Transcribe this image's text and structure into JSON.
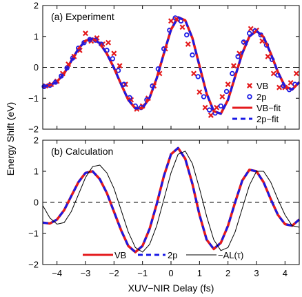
{
  "chart_data": {
    "xlabel": "XUV−NIR Delay (fs)",
    "ylabel": "Energy Shift (eV)",
    "xlim": [
      -4.5,
      4.5
    ],
    "xticks": [
      -4,
      -3,
      -2,
      -1,
      0,
      1,
      2,
      3,
      4
    ],
    "xtick_labels": [
      "−4",
      "−3",
      "−2",
      "−1",
      "0",
      "1",
      "2",
      "3",
      "4"
    ],
    "yticks": [
      -2,
      -1,
      0,
      1,
      2
    ],
    "ytick_labels": [
      "−2",
      "−1",
      "0",
      "1",
      "2"
    ],
    "panels": [
      {
        "title": "(a) Experiment",
        "type": "scatter",
        "ylim": [
          -2,
          2
        ],
        "zero_line": "dashed",
        "legend_position": "lower-right",
        "series": [
          {
            "name": "VB",
            "kind": "markers",
            "marker": "x",
            "color": "#e41a1c",
            "points": [
              [
                -4.4,
                -0.6
              ],
              [
                -4.2,
                -0.55
              ],
              [
                -4.0,
                -0.45
              ],
              [
                -3.8,
                -0.2
              ],
              [
                -3.6,
                0.1
              ],
              [
                -3.4,
                0.35
              ],
              [
                -3.2,
                0.55
              ],
              [
                -3.0,
                1.1
              ],
              [
                -2.8,
                0.85
              ],
              [
                -2.6,
                0.95
              ],
              [
                -2.4,
                0.75
              ],
              [
                -2.2,
                0.8
              ],
              [
                -2.0,
                0.45
              ],
              [
                -1.8,
                0.05
              ],
              [
                -1.6,
                -0.55
              ],
              [
                -1.4,
                -1.05
              ],
              [
                -1.2,
                -1.35
              ],
              [
                -1.0,
                -1.25
              ],
              [
                -0.8,
                -1.0
              ],
              [
                -0.6,
                -0.6
              ],
              [
                -0.4,
                -0.2
              ],
              [
                -0.2,
                0.6
              ],
              [
                0.0,
                1.5
              ],
              [
                0.2,
                1.55
              ],
              [
                0.4,
                1.3
              ],
              [
                0.6,
                0.75
              ],
              [
                0.8,
                -0.2
              ],
              [
                1.0,
                -0.8
              ],
              [
                1.2,
                -1.3
              ],
              [
                1.4,
                -1.55
              ],
              [
                1.6,
                -1.3
              ],
              [
                1.8,
                -0.95
              ],
              [
                2.0,
                -0.55
              ],
              [
                2.2,
                0.05
              ],
              [
                2.4,
                0.45
              ],
              [
                2.6,
                0.8
              ],
              [
                2.8,
                1.25
              ],
              [
                3.0,
                1.2
              ],
              [
                3.2,
                0.85
              ],
              [
                3.4,
                0.35
              ],
              [
                3.6,
                -0.2
              ],
              [
                3.8,
                -0.65
              ],
              [
                4.0,
                -0.65
              ],
              [
                4.2,
                -0.5
              ],
              [
                4.4,
                -0.2
              ]
            ]
          },
          {
            "name": "2p",
            "kind": "markers",
            "marker": "o",
            "color": "#1a1ae6",
            "points": [
              [
                -4.45,
                -0.62
              ],
              [
                -4.25,
                -0.58
              ],
              [
                -4.05,
                -0.48
              ],
              [
                -3.85,
                -0.28
              ],
              [
                -3.65,
                -0.02
              ],
              [
                -3.45,
                0.3
              ],
              [
                -3.25,
                0.62
              ],
              [
                -3.05,
                0.8
              ],
              [
                -2.85,
                0.9
              ],
              [
                -2.65,
                0.88
              ],
              [
                -2.45,
                0.75
              ],
              [
                -2.25,
                0.55
              ],
              [
                -2.05,
                0.28
              ],
              [
                -1.85,
                -0.1
              ],
              [
                -1.65,
                -0.55
              ],
              [
                -1.45,
                -0.98
              ],
              [
                -1.25,
                -1.25
              ],
              [
                -1.05,
                -1.3
              ],
              [
                -0.85,
                -1.05
              ],
              [
                -0.65,
                -0.6
              ],
              [
                -0.45,
                -0.05
              ],
              [
                -0.25,
                0.6
              ],
              [
                -0.05,
                1.2
              ],
              [
                0.15,
                1.6
              ],
              [
                0.35,
                1.5
              ],
              [
                0.55,
                1.05
              ],
              [
                0.75,
                0.4
              ],
              [
                0.95,
                -0.3
              ],
              [
                1.15,
                -0.95
              ],
              [
                1.35,
                -1.38
              ],
              [
                1.55,
                -1.48
              ],
              [
                1.75,
                -1.25
              ],
              [
                1.95,
                -0.78
              ],
              [
                2.15,
                -0.2
              ],
              [
                2.35,
                0.35
              ],
              [
                2.55,
                0.82
              ],
              [
                2.75,
                1.1
              ],
              [
                2.95,
                1.18
              ],
              [
                3.15,
                1.05
              ],
              [
                3.35,
                0.72
              ],
              [
                3.55,
                0.25
              ],
              [
                3.75,
                -0.25
              ],
              [
                3.95,
                -0.6
              ],
              [
                4.15,
                -0.72
              ],
              [
                4.35,
                -0.55
              ]
            ]
          },
          {
            "name": "VB−fit",
            "kind": "curve",
            "color": "#e41a1c",
            "dash": "solid",
            "x": [
              -4.5,
              -4.25,
              -4.0,
              -3.75,
              -3.5,
              -3.25,
              -3.0,
              -2.75,
              -2.5,
              -2.25,
              -2.0,
              -1.75,
              -1.5,
              -1.25,
              -1.0,
              -0.75,
              -0.5,
              -0.25,
              0.0,
              0.25,
              0.5,
              0.75,
              1.0,
              1.25,
              1.5,
              1.75,
              2.0,
              2.25,
              2.5,
              2.75,
              3.0,
              3.25,
              3.5,
              3.75,
              4.0,
              4.25,
              4.5
            ],
            "y": [
              -0.62,
              -0.58,
              -0.46,
              -0.2,
              0.2,
              0.6,
              0.86,
              0.93,
              0.78,
              0.44,
              -0.02,
              -0.55,
              -1.05,
              -1.33,
              -1.32,
              -0.98,
              -0.35,
              0.45,
              1.22,
              1.62,
              1.52,
              0.95,
              0.05,
              -0.85,
              -1.42,
              -1.5,
              -1.05,
              -0.3,
              0.45,
              1.0,
              1.18,
              0.98,
              0.45,
              -0.15,
              -0.62,
              -0.72,
              -0.48
            ]
          },
          {
            "name": "2p−fit",
            "kind": "curve",
            "color": "#1a1ae6",
            "dash": "dashed",
            "x": [
              -4.5,
              -4.25,
              -4.0,
              -3.75,
              -3.5,
              -3.25,
              -3.0,
              -2.75,
              -2.5,
              -2.25,
              -2.0,
              -1.75,
              -1.5,
              -1.25,
              -1.0,
              -0.75,
              -0.5,
              -0.25,
              0.0,
              0.25,
              0.5,
              0.75,
              1.0,
              1.25,
              1.5,
              1.75,
              2.0,
              2.25,
              2.5,
              2.75,
              3.0,
              3.25,
              3.5,
              3.75,
              4.0,
              4.25,
              4.5
            ],
            "y": [
              -0.62,
              -0.58,
              -0.46,
              -0.2,
              0.2,
              0.6,
              0.86,
              0.93,
              0.78,
              0.44,
              -0.02,
              -0.55,
              -1.05,
              -1.33,
              -1.32,
              -0.98,
              -0.35,
              0.45,
              1.22,
              1.62,
              1.52,
              0.95,
              0.05,
              -0.85,
              -1.42,
              -1.5,
              -1.05,
              -0.3,
              0.45,
              1.0,
              1.18,
              0.98,
              0.45,
              -0.15,
              -0.62,
              -0.72,
              -0.48
            ]
          }
        ]
      },
      {
        "title": "(b) Calculation",
        "type": "line",
        "ylim": [
          -2,
          2
        ],
        "zero_line": "dashed",
        "legend_position": "bottom",
        "series": [
          {
            "name": "VB",
            "kind": "curve",
            "color": "#e41a1c",
            "dash": "solid",
            "x": [
              -4.5,
              -4.25,
              -4.0,
              -3.75,
              -3.5,
              -3.25,
              -3.0,
              -2.75,
              -2.5,
              -2.25,
              -2.0,
              -1.75,
              -1.5,
              -1.25,
              -1.0,
              -0.75,
              -0.5,
              -0.25,
              0.0,
              0.25,
              0.5,
              0.75,
              1.0,
              1.25,
              1.5,
              1.75,
              2.0,
              2.25,
              2.5,
              2.75,
              3.0,
              3.25,
              3.5,
              3.75,
              4.0,
              4.25,
              4.5
            ],
            "y": [
              -0.65,
              -0.68,
              -0.55,
              -0.25,
              0.2,
              0.65,
              0.95,
              1.0,
              0.75,
              0.3,
              -0.3,
              -0.9,
              -1.4,
              -1.6,
              -1.4,
              -0.85,
              -0.05,
              0.85,
              1.55,
              1.75,
              1.4,
              0.6,
              -0.4,
              -1.2,
              -1.5,
              -1.3,
              -0.75,
              0.0,
              0.7,
              1.05,
              1.0,
              0.65,
              0.1,
              -0.4,
              -0.7,
              -0.75,
              -0.55
            ]
          },
          {
            "name": "2p",
            "kind": "curve",
            "color": "#1a1ae6",
            "dash": "dashed",
            "x": [
              -4.5,
              -4.25,
              -4.0,
              -3.75,
              -3.5,
              -3.25,
              -3.0,
              -2.75,
              -2.5,
              -2.25,
              -2.0,
              -1.75,
              -1.5,
              -1.25,
              -1.0,
              -0.75,
              -0.5,
              -0.25,
              0.0,
              0.25,
              0.5,
              0.75,
              1.0,
              1.25,
              1.5,
              1.75,
              2.0,
              2.25,
              2.5,
              2.75,
              3.0,
              3.25,
              3.5,
              3.75,
              4.0,
              4.25,
              4.5
            ],
            "y": [
              -0.65,
              -0.68,
              -0.55,
              -0.25,
              0.2,
              0.65,
              0.95,
              1.0,
              0.75,
              0.3,
              -0.3,
              -0.9,
              -1.4,
              -1.6,
              -1.4,
              -0.85,
              -0.05,
              0.85,
              1.55,
              1.75,
              1.4,
              0.6,
              -0.4,
              -1.2,
              -1.5,
              -1.3,
              -0.75,
              0.0,
              0.7,
              1.05,
              1.0,
              0.65,
              0.1,
              -0.4,
              -0.7,
              -0.75,
              -0.55
            ]
          },
          {
            "name": "−A_L(τ)",
            "kind": "curve",
            "color": "#000000",
            "dash": "thin",
            "x": [
              -4.5,
              -4.25,
              -4.0,
              -3.75,
              -3.5,
              -3.25,
              -3.0,
              -2.75,
              -2.5,
              -2.25,
              -2.0,
              -1.75,
              -1.5,
              -1.25,
              -1.0,
              -0.75,
              -0.5,
              -0.25,
              0.0,
              0.25,
              0.5,
              0.75,
              1.0,
              1.25,
              1.5,
              1.75,
              2.0,
              2.25,
              2.5,
              2.75,
              3.0,
              3.25,
              3.5,
              3.75,
              4.0,
              4.25,
              4.5
            ],
            "y": [
              -0.1,
              -0.5,
              -0.7,
              -0.65,
              -0.3,
              0.25,
              0.8,
              1.15,
              1.2,
              0.95,
              0.45,
              -0.25,
              -0.95,
              -1.45,
              -1.6,
              -1.35,
              -0.75,
              0.1,
              0.95,
              1.55,
              1.65,
              1.25,
              0.45,
              -0.45,
              -1.2,
              -1.55,
              -1.45,
              -0.95,
              -0.2,
              0.55,
              1.0,
              1.0,
              0.65,
              0.1,
              -0.4,
              -0.75,
              -0.8
            ]
          }
        ]
      }
    ]
  }
}
